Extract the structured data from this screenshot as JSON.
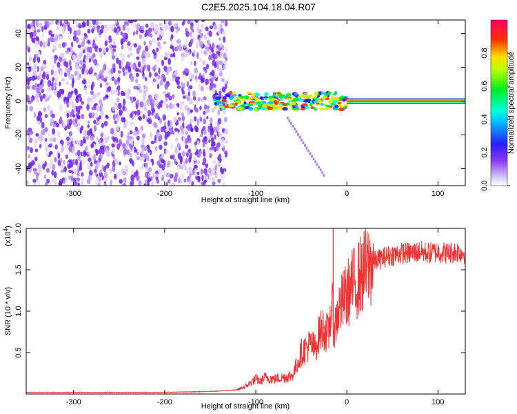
{
  "title": "C2E5.2025.104.18.04.R07",
  "chart_data": [
    {
      "type": "heatmap",
      "xlabel": "Height of straight line (km)",
      "ylabel": "Frequency (Hz)",
      "xlim": [
        -352,
        130
      ],
      "ylim": [
        -50,
        48
      ],
      "xticks": [
        -300,
        -200,
        -100,
        0,
        100
      ],
      "xtick_labels": [
        "-300",
        "-200",
        "-100",
        "0",
        "100"
      ],
      "yticks": [
        -40,
        -20,
        0,
        20,
        40
      ],
      "ytick_labels": [
        "-40",
        "-20",
        "0",
        "20",
        "40"
      ],
      "colorbar": {
        "label": "Normalized spectral amplitude",
        "range": [
          0,
          1
        ],
        "ticks": [
          0.0,
          0.2,
          0.4,
          0.6,
          0.8
        ],
        "tick_labels": [
          "0.0",
          "0.2",
          "0.4",
          "0.6",
          "0.8"
        ],
        "colormap": "rainbow (white-violet-blue-cyan-green-yellow-red-magenta)"
      },
      "features": {
        "noise_region_x": [
          -352,
          -140
        ],
        "noise_color": "#7b2cf0",
        "signal_band_freq": 0,
        "signal_band_x": [
          -145,
          130
        ],
        "secondary_trace_x": [
          -65,
          -25
        ],
        "secondary_trace_freq": [
          -10,
          -44
        ]
      }
    },
    {
      "type": "line",
      "xlabel": "Height of straight line (km)",
      "ylabel": "SNR (10 * v/v)",
      "multiplier_label": "(x10",
      "multiplier_exp": "4",
      "xlim": [
        -352,
        130
      ],
      "ylim": [
        0,
        2.0
      ],
      "xticks": [
        -300,
        -200,
        -100,
        0,
        100
      ],
      "xtick_labels": [
        "-300",
        "-200",
        "-100",
        "0",
        "100"
      ],
      "yticks": [
        0.5,
        1.0,
        1.5,
        2.0
      ],
      "ytick_labels": [
        "0.5",
        "1.0",
        "1.5",
        "2.0"
      ],
      "color": "#ee3333",
      "series": [
        {
          "x": [
            -352,
            -300,
            -250,
            -200,
            -150,
            -120,
            -110,
            -100,
            -95,
            -90,
            -80,
            -70,
            -60,
            -55,
            -50,
            -45,
            -40,
            -35,
            -30,
            -25,
            -20,
            -17,
            -15,
            -13,
            -10,
            -5,
            0,
            5,
            10,
            20,
            30,
            40,
            50,
            60,
            70,
            80,
            90,
            100,
            110,
            120,
            130
          ],
          "y": [
            0.02,
            0.02,
            0.02,
            0.02,
            0.03,
            0.05,
            0.1,
            0.18,
            0.15,
            0.2,
            0.18,
            0.2,
            0.22,
            0.35,
            0.5,
            0.55,
            0.6,
            0.55,
            0.75,
            0.8,
            0.7,
            1.1,
            0.9,
            0.8,
            1.0,
            1.1,
            1.2,
            1.3,
            1.35,
            1.5,
            1.6,
            1.65,
            1.68,
            1.7,
            1.7,
            1.72,
            1.7,
            1.72,
            1.7,
            1.72,
            1.7
          ]
        }
      ]
    }
  ]
}
